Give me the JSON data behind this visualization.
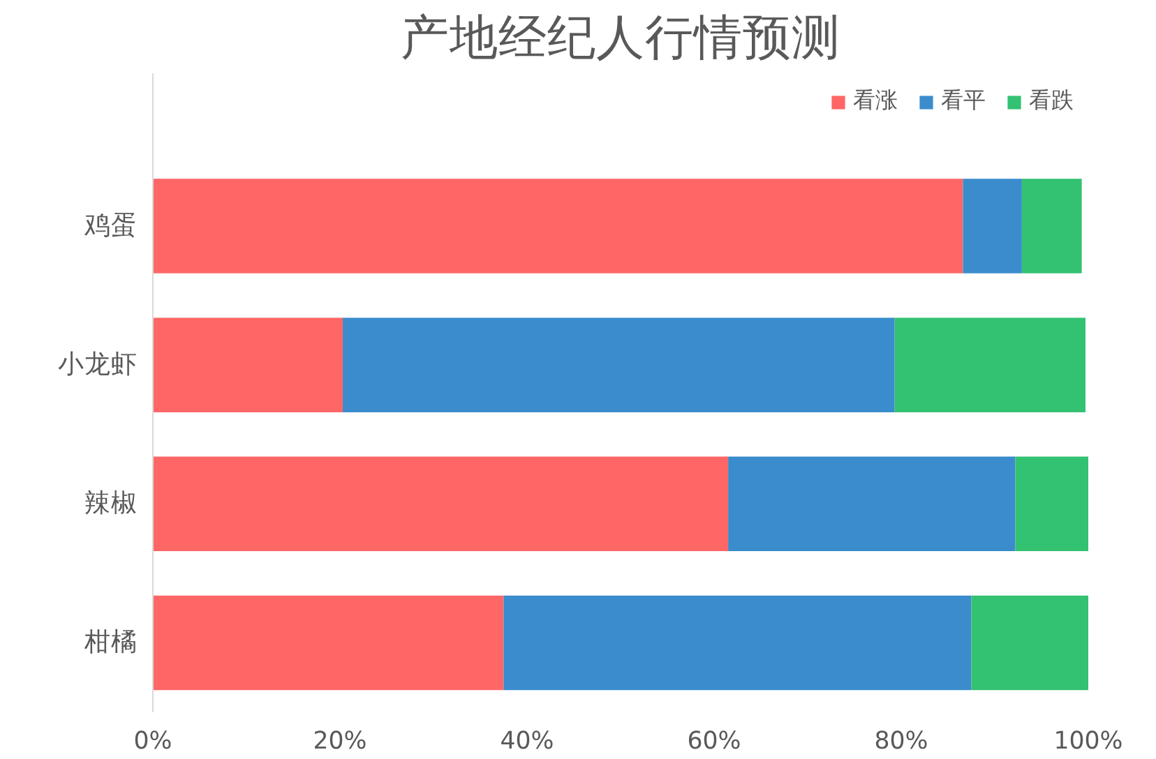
{
  "chart_data": {
    "type": "bar",
    "orientation": "horizontal",
    "stacked": true,
    "title": "产地经纪人行情预测",
    "categories": [
      "鸡蛋",
      "小龙虾",
      "辣椒",
      "柑橘"
    ],
    "series": [
      {
        "name": "看涨",
        "color": "#ff6666",
        "values": [
          86.6,
          20.3,
          61.5,
          37.5
        ]
      },
      {
        "name": "看平",
        "color": "#3a8ccc",
        "values": [
          6.3,
          59.0,
          30.7,
          50.0
        ]
      },
      {
        "name": "看跌",
        "color": "#33c172",
        "values": [
          6.4,
          20.4,
          7.8,
          12.5
        ]
      }
    ],
    "xlim": [
      0,
      100
    ],
    "xticks": [
      {
        "value": 0,
        "label": "0%"
      },
      {
        "value": 20,
        "label": "20%"
      },
      {
        "value": 40,
        "label": "40%"
      },
      {
        "value": 60,
        "label": "60%"
      },
      {
        "value": 80,
        "label": "80%"
      },
      {
        "value": 100,
        "label": "100%"
      }
    ],
    "grid": false,
    "legend": "top right"
  }
}
